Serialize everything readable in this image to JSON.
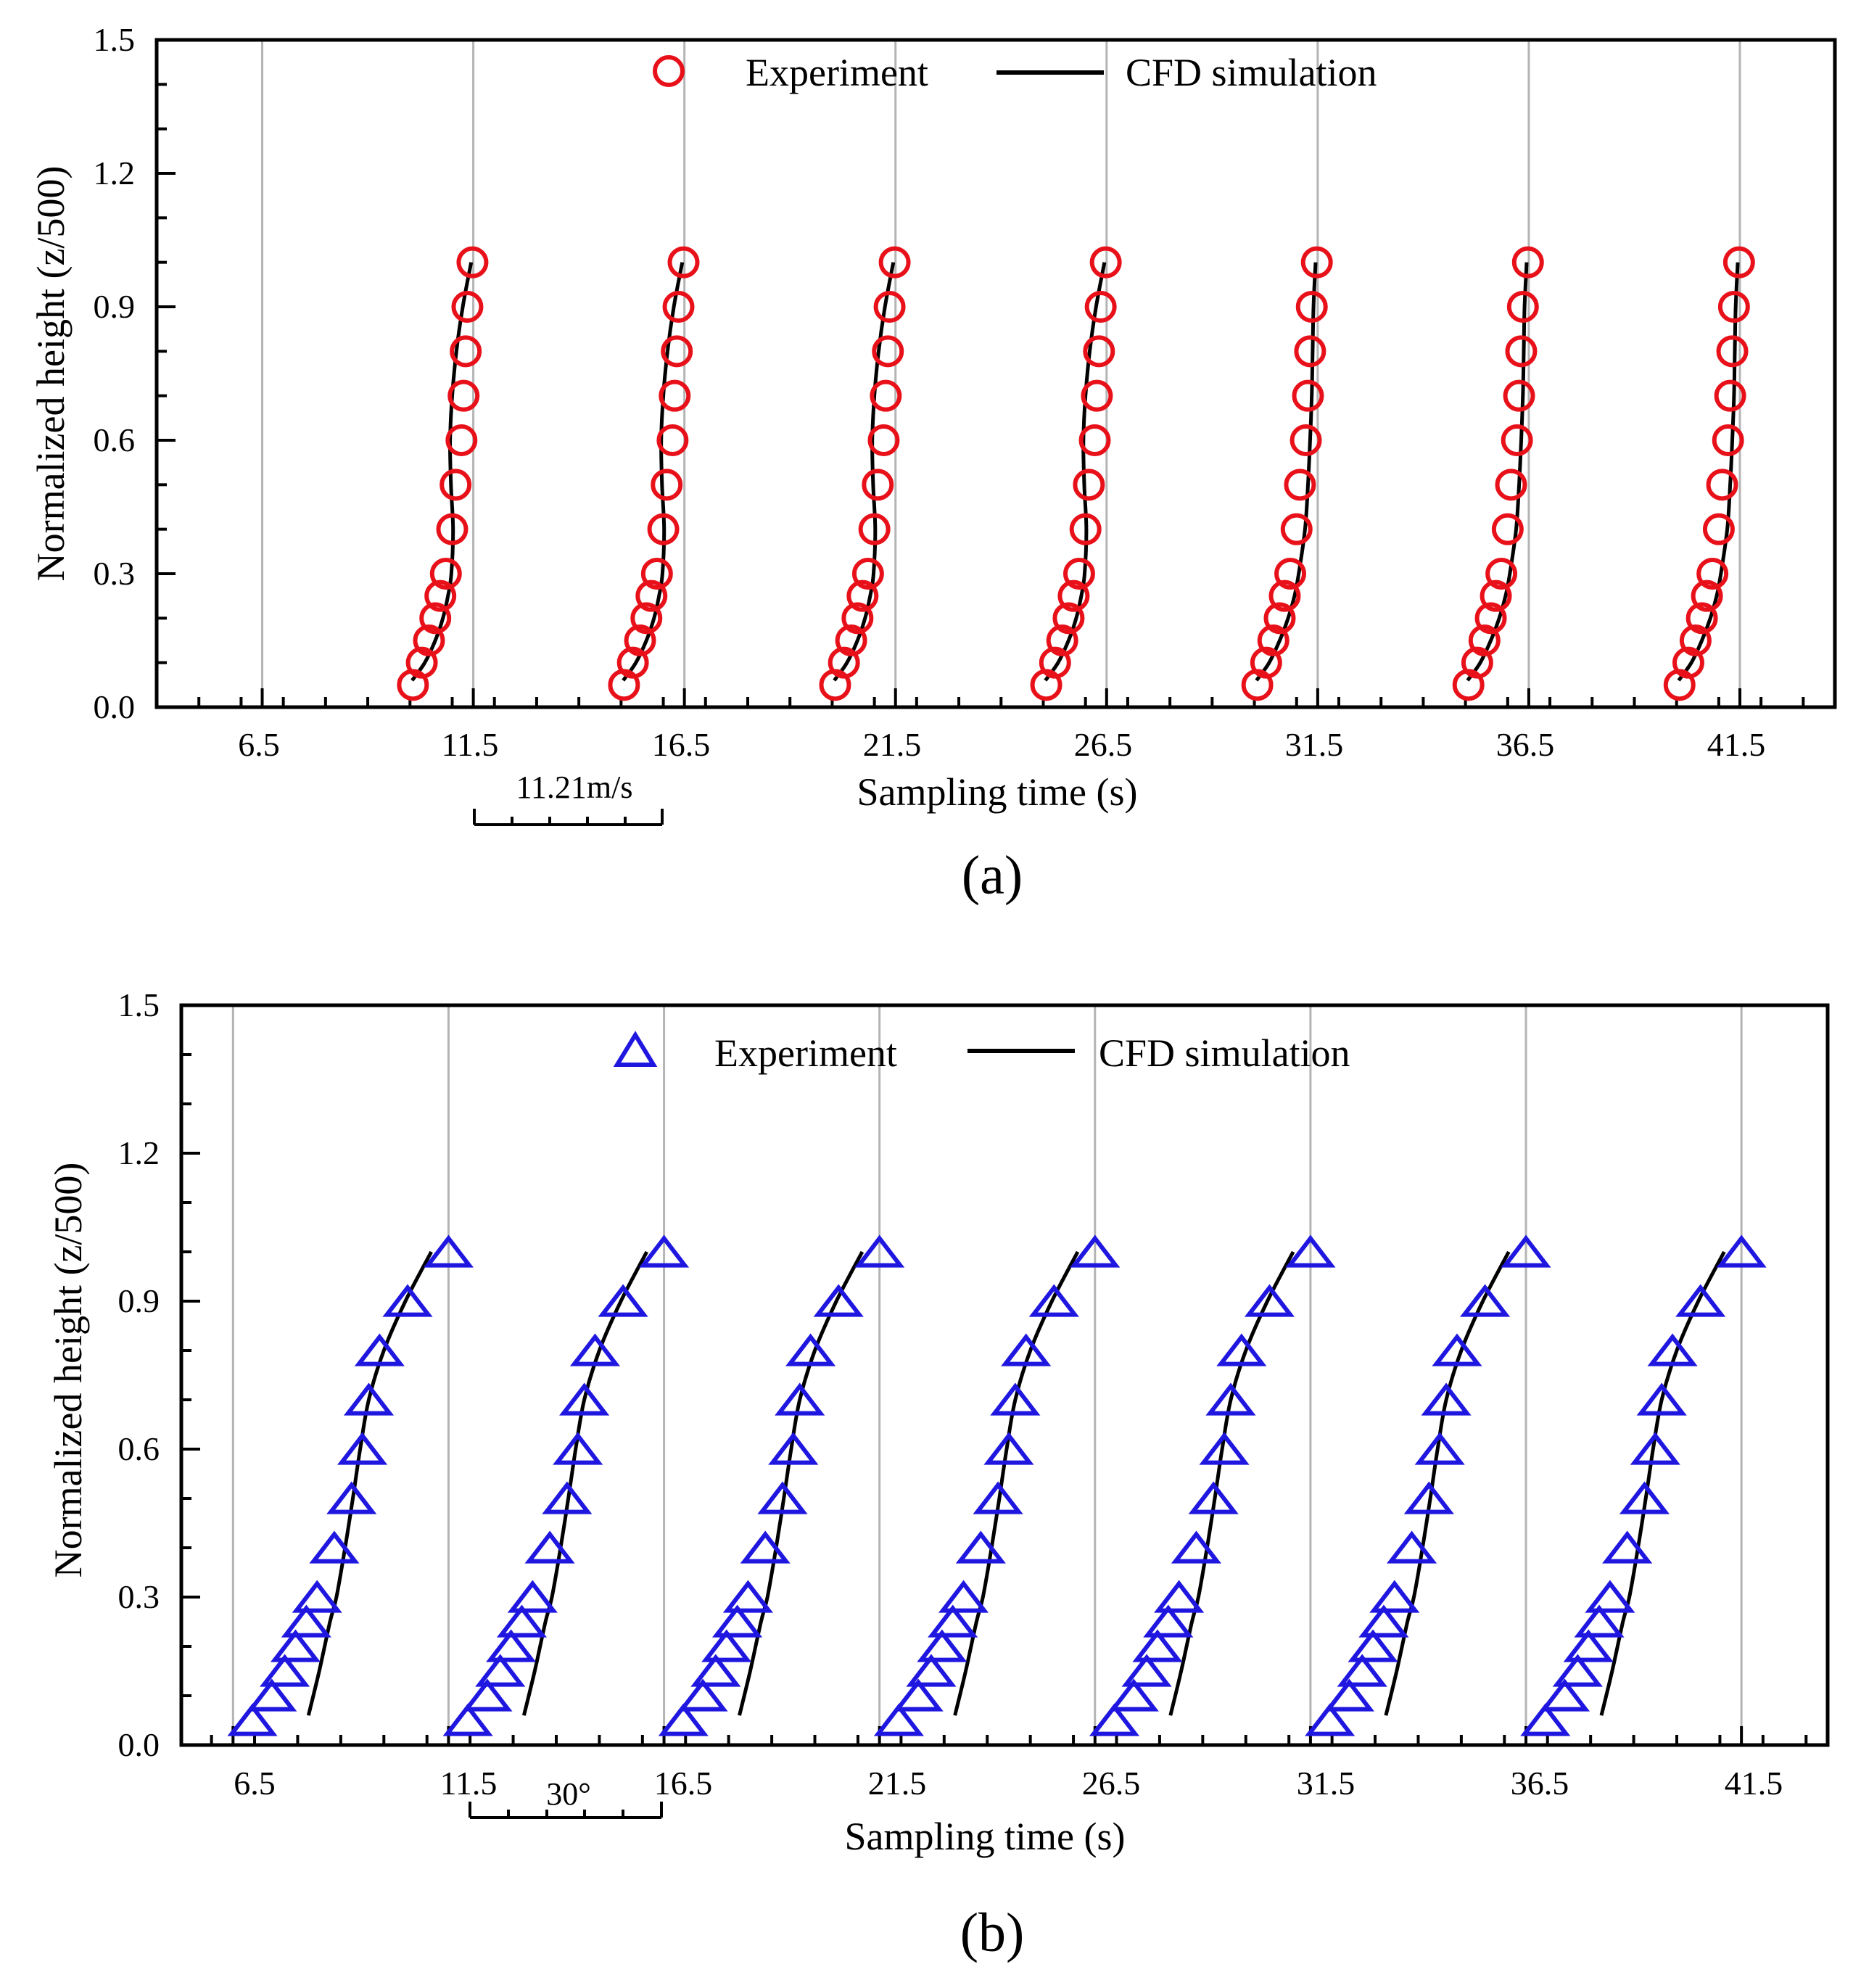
{
  "chart_data": [
    {
      "type": "scatter",
      "panel_label": "(a)",
      "xlabel": "Sampling time (s)",
      "ylabel": "Normalized height (z/500)",
      "xlim": [
        4.0,
        43.75
      ],
      "ylim": [
        0.0,
        1.5
      ],
      "xticks": [
        "6.5",
        "11.5",
        "16.5",
        "21.5",
        "26.5",
        "31.5",
        "36.5",
        "41.5"
      ],
      "yticks": [
        "0.0",
        "0.3",
        "0.6",
        "0.9",
        "1.2",
        "1.5"
      ],
      "grid": "vertical",
      "legend_position": "top-center",
      "scalebar_label": "11.21m/s",
      "scalebar_span": [
        11.5,
        16.0
      ],
      "colors": {
        "experiment": "#e8111a",
        "cfd": "#000000",
        "grid": "#b4b4b4"
      },
      "marker": "circle",
      "heights": [
        0.05,
        0.1,
        0.15,
        0.2,
        0.25,
        0.3,
        0.4,
        0.5,
        0.6,
        0.7,
        0.8,
        0.9,
        1.0
      ],
      "series": [
        {
          "name": "Experiment",
          "profiles": [
            {
              "x": [
                10.07,
                10.28,
                10.45,
                10.6,
                10.72,
                10.85,
                11.0,
                11.08,
                11.22,
                11.27,
                11.32,
                11.36,
                11.48
              ]
            },
            {
              "x": [
                15.07,
                15.28,
                15.45,
                15.6,
                15.72,
                15.85,
                16.0,
                16.08,
                16.22,
                16.27,
                16.32,
                16.36,
                16.48
              ]
            },
            {
              "x": [
                20.07,
                20.28,
                20.45,
                20.6,
                20.72,
                20.85,
                21.0,
                21.08,
                21.22,
                21.27,
                21.32,
                21.36,
                21.48
              ]
            },
            {
              "x": [
                25.07,
                25.28,
                25.45,
                25.6,
                25.72,
                25.85,
                26.0,
                26.08,
                26.22,
                26.27,
                26.32,
                26.36,
                26.48
              ]
            },
            {
              "x": [
                30.07,
                30.28,
                30.45,
                30.6,
                30.72,
                30.85,
                31.0,
                31.08,
                31.22,
                31.27,
                31.32,
                31.36,
                31.48
              ]
            },
            {
              "x": [
                35.07,
                35.28,
                35.45,
                35.6,
                35.72,
                35.85,
                36.0,
                36.08,
                36.22,
                36.27,
                36.32,
                36.36,
                36.48
              ]
            },
            {
              "x": [
                40.07,
                40.28,
                40.45,
                40.6,
                40.72,
                40.85,
                41.0,
                41.08,
                41.22,
                41.27,
                41.32,
                41.36,
                41.48
              ]
            }
          ]
        },
        {
          "name": "CFD simulation",
          "profiles": [
            {
              "z": [
                0.06,
                0.1,
                0.15,
                0.2,
                0.25,
                0.3,
                0.4,
                0.5,
                0.6,
                0.7,
                0.8,
                0.9,
                1.0
              ],
              "x": [
                10.05,
                10.35,
                10.6,
                10.78,
                10.9,
                10.98,
                11.02,
                10.97,
                10.95,
                11.0,
                11.1,
                11.25,
                11.45
              ]
            },
            {
              "z": [
                0.06,
                0.1,
                0.15,
                0.2,
                0.25,
                0.3,
                0.4,
                0.5,
                0.6,
                0.7,
                0.8,
                0.9,
                1.0
              ],
              "x": [
                15.05,
                15.35,
                15.6,
                15.78,
                15.9,
                15.98,
                16.02,
                15.97,
                15.95,
                16.0,
                16.1,
                16.25,
                16.45
              ]
            },
            {
              "z": [
                0.06,
                0.1,
                0.15,
                0.2,
                0.25,
                0.3,
                0.4,
                0.5,
                0.6,
                0.7,
                0.8,
                0.9,
                1.0
              ],
              "x": [
                20.05,
                20.35,
                20.6,
                20.78,
                20.9,
                20.98,
                21.02,
                20.97,
                20.95,
                21.0,
                21.1,
                21.25,
                21.45
              ]
            },
            {
              "z": [
                0.06,
                0.1,
                0.15,
                0.2,
                0.25,
                0.3,
                0.4,
                0.5,
                0.6,
                0.7,
                0.8,
                0.9,
                1.0
              ],
              "x": [
                25.05,
                25.35,
                25.6,
                25.78,
                25.9,
                25.98,
                26.02,
                25.97,
                25.95,
                26.0,
                26.1,
                26.25,
                26.45
              ]
            },
            {
              "z": [
                0.06,
                0.1,
                0.15,
                0.2,
                0.25,
                0.3,
                0.4,
                0.5,
                0.6,
                0.7,
                0.8,
                0.9,
                1.0
              ],
              "x": [
                30.05,
                30.35,
                30.6,
                30.8,
                30.95,
                31.05,
                31.2,
                31.27,
                31.32,
                31.36,
                31.38,
                31.4,
                31.45
              ]
            },
            {
              "z": [
                0.06,
                0.1,
                0.15,
                0.2,
                0.25,
                0.3,
                0.4,
                0.5,
                0.6,
                0.7,
                0.8,
                0.9,
                1.0
              ],
              "x": [
                35.05,
                35.35,
                35.6,
                35.8,
                35.95,
                36.05,
                36.2,
                36.27,
                36.32,
                36.36,
                36.38,
                36.4,
                36.45
              ]
            },
            {
              "z": [
                0.06,
                0.1,
                0.15,
                0.2,
                0.25,
                0.3,
                0.4,
                0.5,
                0.6,
                0.7,
                0.8,
                0.9,
                1.0
              ],
              "x": [
                40.05,
                40.35,
                40.6,
                40.8,
                40.95,
                41.05,
                41.2,
                41.27,
                41.32,
                41.36,
                41.38,
                41.4,
                41.45
              ]
            }
          ]
        }
      ]
    },
    {
      "type": "scatter",
      "panel_label": "(b)",
      "xlabel": "Sampling time (s)",
      "ylabel": "Normalized height (z/500)",
      "xlim": [
        5.3,
        43.5
      ],
      "ylim": [
        0.0,
        1.5
      ],
      "xticks": [
        "6.5",
        "11.5",
        "16.5",
        "21.5",
        "26.5",
        "31.5",
        "36.5",
        "41.5"
      ],
      "yticks": [
        "0.0",
        "0.3",
        "0.6",
        "0.9",
        "1.2",
        "1.5"
      ],
      "grid": "vertical",
      "legend_position": "top-center",
      "scalebar_label": "30°",
      "scalebar_span": [
        11.5,
        16.0
      ],
      "colors": {
        "experiment": "#1f17e0",
        "cfd": "#000000",
        "grid": "#b4b4b4"
      },
      "marker": "triangle",
      "heights": [
        0.05,
        0.1,
        0.15,
        0.2,
        0.25,
        0.3,
        0.4,
        0.5,
        0.6,
        0.7,
        0.8,
        0.9,
        1.0
      ],
      "series": [
        {
          "name": "Experiment",
          "profiles": [
            {
              "x": [
                6.95,
                7.4,
                7.7,
                7.95,
                8.2,
                8.45,
                8.85,
                9.25,
                9.5,
                9.65,
                9.9,
                10.55,
                11.5
              ]
            },
            {
              "x": [
                11.95,
                12.4,
                12.7,
                12.95,
                13.2,
                13.45,
                13.85,
                14.25,
                14.5,
                14.65,
                14.9,
                15.55,
                16.5
              ]
            },
            {
              "x": [
                16.95,
                17.4,
                17.7,
                17.95,
                18.2,
                18.45,
                18.85,
                19.25,
                19.5,
                19.65,
                19.9,
                20.55,
                21.5
              ]
            },
            {
              "x": [
                21.95,
                22.4,
                22.7,
                22.95,
                23.2,
                23.45,
                23.85,
                24.25,
                24.5,
                24.65,
                24.9,
                25.55,
                26.5
              ]
            },
            {
              "x": [
                26.95,
                27.4,
                27.7,
                27.95,
                28.2,
                28.45,
                28.85,
                29.25,
                29.5,
                29.65,
                29.9,
                30.55,
                31.5
              ]
            },
            {
              "x": [
                31.95,
                32.4,
                32.7,
                32.95,
                33.2,
                33.45,
                33.85,
                34.25,
                34.5,
                34.65,
                34.9,
                35.55,
                36.5
              ]
            },
            {
              "x": [
                36.95,
                37.4,
                37.7,
                37.95,
                38.2,
                38.45,
                38.85,
                39.25,
                39.5,
                39.65,
                39.9,
                40.55,
                41.5
              ]
            }
          ]
        },
        {
          "name": "CFD simulation",
          "profiles": [
            {
              "z": [
                0.06,
                0.15,
                0.25,
                0.3,
                0.4,
                0.5,
                0.6,
                0.7,
                0.8,
                0.9,
                1.0
              ],
              "x": [
                8.25,
                8.5,
                8.75,
                8.9,
                9.1,
                9.28,
                9.45,
                9.65,
                10.0,
                10.5,
                11.1
              ]
            },
            {
              "z": [
                0.06,
                0.15,
                0.25,
                0.3,
                0.4,
                0.5,
                0.6,
                0.7,
                0.8,
                0.9,
                1.0
              ],
              "x": [
                13.25,
                13.5,
                13.75,
                13.9,
                14.1,
                14.28,
                14.45,
                14.65,
                15.0,
                15.5,
                16.1
              ]
            },
            {
              "z": [
                0.06,
                0.15,
                0.25,
                0.3,
                0.4,
                0.5,
                0.6,
                0.7,
                0.8,
                0.9,
                1.0
              ],
              "x": [
                18.25,
                18.5,
                18.75,
                18.9,
                19.1,
                19.28,
                19.45,
                19.65,
                20.0,
                20.5,
                21.1
              ]
            },
            {
              "z": [
                0.06,
                0.15,
                0.25,
                0.3,
                0.4,
                0.5,
                0.6,
                0.7,
                0.8,
                0.9,
                1.0
              ],
              "x": [
                23.25,
                23.5,
                23.75,
                23.9,
                24.1,
                24.28,
                24.45,
                24.65,
                25.0,
                25.5,
                26.1
              ]
            },
            {
              "z": [
                0.06,
                0.15,
                0.25,
                0.3,
                0.4,
                0.5,
                0.6,
                0.7,
                0.8,
                0.9,
                1.0
              ],
              "x": [
                28.25,
                28.5,
                28.75,
                28.9,
                29.1,
                29.28,
                29.45,
                29.65,
                30.0,
                30.5,
                31.1
              ]
            },
            {
              "z": [
                0.06,
                0.15,
                0.25,
                0.3,
                0.4,
                0.5,
                0.6,
                0.7,
                0.8,
                0.9,
                1.0
              ],
              "x": [
                33.25,
                33.5,
                33.75,
                33.9,
                34.1,
                34.28,
                34.45,
                34.65,
                35.0,
                35.5,
                36.1
              ]
            },
            {
              "z": [
                0.06,
                0.15,
                0.25,
                0.3,
                0.4,
                0.5,
                0.6,
                0.7,
                0.8,
                0.9,
                1.0
              ],
              "x": [
                38.25,
                38.5,
                38.75,
                38.9,
                39.1,
                39.28,
                39.45,
                39.65,
                40.0,
                40.5,
                41.1
              ]
            }
          ]
        }
      ]
    }
  ]
}
